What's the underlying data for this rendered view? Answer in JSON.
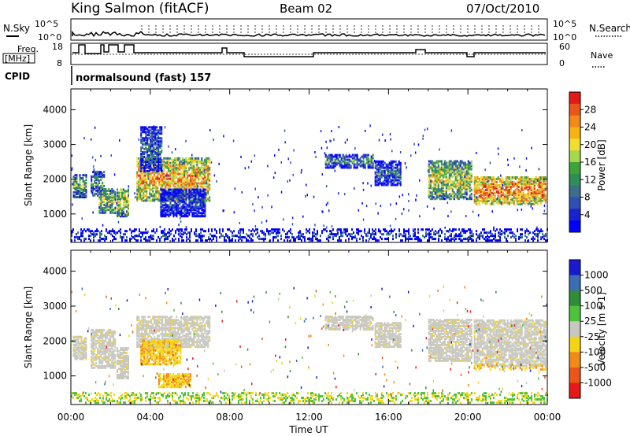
{
  "header": {
    "station": "King Salmon (fitACF)",
    "beam": "Beam 02",
    "date": "07/Oct/2010"
  },
  "top_panels": {
    "nsky_label": "N.Sky",
    "freq_label_1": "Freq.",
    "freq_label_2": "[MHz]",
    "cpid_label": "CPID",
    "nsearch_label": "N.Search",
    "nave_label": "Nave",
    "noise_ticks": [
      "10^5",
      "10^0"
    ],
    "freq_ticks": [
      "18",
      "8"
    ],
    "nave_ticks": [
      "60",
      "0"
    ],
    "cpid_text": "normalsound (fast) 157"
  },
  "chart_data": [
    {
      "type": "heatmap",
      "name": "power",
      "ylabel": "Slant Range [km]",
      "yticks": [
        "4000",
        "3000",
        "2000",
        "1000"
      ],
      "ylim": [
        180,
        4600
      ],
      "colorbar_label": "Power [dB]",
      "colorbar_ticks": [
        "28",
        "24",
        "20",
        "16",
        "12",
        "8",
        "4"
      ],
      "colorbar_colors": [
        "#e61919",
        "#e8561a",
        "#f08a18",
        "#f4b414",
        "#f2de30",
        "#a7d84b",
        "#3fa33a",
        "#2f8d55",
        "#3b6d8d",
        "#2f4fb3",
        "#1a22cf",
        "#0000ff"
      ],
      "xlim_hours": [
        0,
        24
      ],
      "echo_regions": [
        {
          "t0": 0.1,
          "t1": 0.8,
          "r0": 1450,
          "r1": 2100,
          "level": 0.45
        },
        {
          "t0": 1.0,
          "t1": 1.7,
          "r0": 1500,
          "r1": 2200,
          "level": 0.4
        },
        {
          "t0": 1.4,
          "t1": 2.2,
          "r0": 1000,
          "r1": 1700,
          "level": 0.55
        },
        {
          "t0": 2.3,
          "t1": 2.9,
          "r0": 900,
          "r1": 1700,
          "level": 0.6
        },
        {
          "t0": 3.3,
          "t1": 7.0,
          "r0": 1350,
          "r1": 2600,
          "level": 0.75
        },
        {
          "t0": 3.5,
          "t1": 4.6,
          "r0": 2200,
          "r1": 3500,
          "level": 0.3
        },
        {
          "t0": 4.5,
          "t1": 6.8,
          "r0": 900,
          "r1": 1700,
          "level": 0.2
        },
        {
          "t0": 12.8,
          "t1": 15.2,
          "r0": 2300,
          "r1": 2700,
          "level": 0.35
        },
        {
          "t0": 15.3,
          "t1": 16.6,
          "r0": 1800,
          "r1": 2500,
          "level": 0.3
        },
        {
          "t0": 18.0,
          "t1": 20.2,
          "r0": 1400,
          "r1": 2500,
          "level": 0.6
        },
        {
          "t0": 20.3,
          "t1": 23.9,
          "r0": 1250,
          "r1": 2050,
          "level": 0.85
        },
        {
          "t0": 0.0,
          "t1": 24.0,
          "r0": 200,
          "r1": 520,
          "level": 0.2
        }
      ]
    },
    {
      "type": "heatmap",
      "name": "velocity",
      "ylabel": "Slant Range [km]",
      "yticks": [
        "4000",
        "3000",
        "2000",
        "1000"
      ],
      "ylim": [
        180,
        4600
      ],
      "xlabel": "Time UT",
      "xticks": [
        "00:00",
        "04:00",
        "08:00",
        "12:00",
        "16:00",
        "20:00",
        "00:00"
      ],
      "xlim_hours": [
        0,
        24
      ],
      "colorbar_label": "Velocity [m s-1]",
      "colorbar_ticks": [
        "1000",
        "500",
        "100",
        "25",
        "-25",
        "-100",
        "-500",
        "-1000"
      ],
      "colorbar_colors": [
        "#1a1acf",
        "#3b6db3",
        "#2f8d3a",
        "#4cc33a",
        "#c8c8c0",
        "#f4d414",
        "#f08a18",
        "#e8561a",
        "#e61919"
      ],
      "echo_regions": [
        {
          "t0": 0.1,
          "t1": 0.8,
          "r0": 1450,
          "r1": 2100,
          "v": 0
        },
        {
          "t0": 1.0,
          "t1": 2.2,
          "r0": 1200,
          "r1": 2300,
          "v": 0
        },
        {
          "t0": 2.3,
          "t1": 2.9,
          "r0": 900,
          "r1": 1800,
          "v": 0
        },
        {
          "t0": 3.3,
          "t1": 7.0,
          "r0": 1800,
          "r1": 2700,
          "v": 0
        },
        {
          "t0": 3.5,
          "t1": 5.5,
          "r0": 1300,
          "r1": 2000,
          "v": -1
        },
        {
          "t0": 4.4,
          "t1": 6.0,
          "r0": 650,
          "r1": 1050,
          "v": -1
        },
        {
          "t0": 12.8,
          "t1": 15.2,
          "r0": 2300,
          "r1": 2700,
          "v": 0
        },
        {
          "t0": 15.3,
          "t1": 16.6,
          "r0": 1800,
          "r1": 2500,
          "v": 0
        },
        {
          "t0": 18.0,
          "t1": 20.2,
          "r0": 1400,
          "r1": 2600,
          "v": 0
        },
        {
          "t0": 20.3,
          "t1": 23.9,
          "r0": 1250,
          "r1": 2600,
          "v": 0
        },
        {
          "t0": 20.3,
          "t1": 23.9,
          "r0": 1150,
          "r1": 1300,
          "v": -1
        },
        {
          "t0": 0.0,
          "t1": 24.0,
          "r0": 200,
          "r1": 480,
          "v": 1
        }
      ]
    }
  ]
}
